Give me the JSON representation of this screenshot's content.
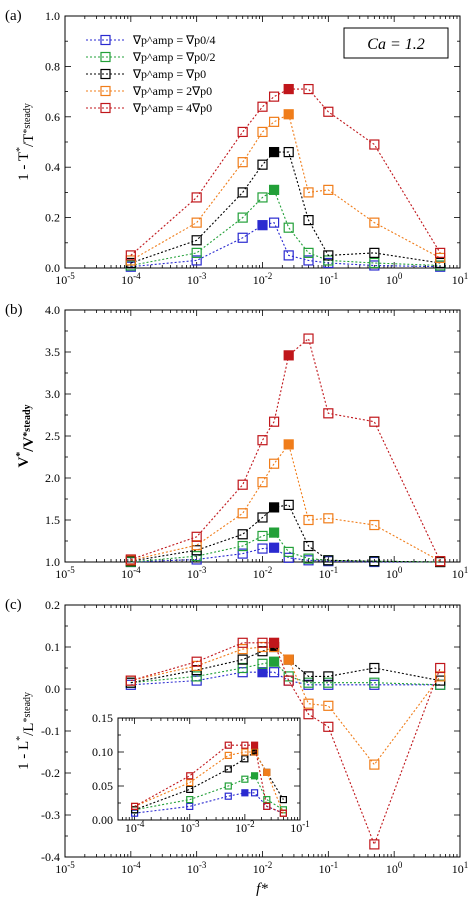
{
  "panels_labels": [
    "(a)",
    "(b)",
    "(c)"
  ],
  "ca_label": "Ca = 1.2",
  "xlabel": "f*",
  "legend": [
    "∇p^amp = ∇p0/4",
    "∇p^amp = ∇p0/2",
    "∇p^amp = ∇p0",
    "∇p^amp = 2∇p0",
    "∇p^amp = 4∇p0"
  ],
  "colors": [
    "#2a2ad0",
    "#22a038",
    "#000000",
    "#f07d1a",
    "#c0161b"
  ],
  "chart_data": [
    {
      "type": "scatter",
      "panel": "(a)",
      "ylabel": "1 - T*/T*steady",
      "xscale": "log",
      "xlim": [
        1e-05,
        10
      ],
      "ylim": [
        0,
        1.0
      ],
      "yticks": [
        "0.0",
        "0.2",
        "0.4",
        "0.6",
        "0.8",
        "1.0"
      ],
      "xticks": [
        "10-5",
        "10-4",
        "10-3",
        "10-2",
        "10-1",
        "100",
        "101"
      ],
      "x": [
        0.0001,
        0.001,
        0.005,
        0.01,
        0.015,
        0.025,
        0.05,
        0.1,
        0.5,
        5
      ],
      "series": [
        {
          "name": "∇p^amp = ∇p0/4",
          "values": [
            0.005,
            0.03,
            0.12,
            0.17,
            0.18,
            0.05,
            0.03,
            0.02,
            0.01,
            0.005
          ],
          "filled_index": 3
        },
        {
          "name": "∇p^amp = ∇p0/2",
          "values": [
            0.01,
            0.06,
            0.2,
            0.28,
            0.31,
            0.16,
            0.06,
            0.03,
            0.02,
            0.01
          ],
          "filled_index": 4
        },
        {
          "name": "∇p^amp = ∇p0",
          "values": [
            0.02,
            0.11,
            0.3,
            0.41,
            0.46,
            0.46,
            0.19,
            0.05,
            0.06,
            0.02
          ],
          "filled_index": 4
        },
        {
          "name": "∇p^amp = 2∇p0",
          "values": [
            0.03,
            0.18,
            0.42,
            0.54,
            0.58,
            0.61,
            0.3,
            0.31,
            0.18,
            0.04
          ],
          "filled_index": 5
        },
        {
          "name": "∇p^amp = 4∇p0",
          "values": [
            0.05,
            0.28,
            0.54,
            0.64,
            0.68,
            0.71,
            0.71,
            0.62,
            0.49,
            0.06
          ],
          "filled_index": 5
        }
      ]
    },
    {
      "type": "scatter",
      "panel": "(b)",
      "ylabel": "V*/V*steady",
      "xscale": "log",
      "xlim": [
        1e-05,
        10
      ],
      "ylim": [
        1.0,
        4.0
      ],
      "yticks": [
        "1.0",
        "1.5",
        "2.0",
        "2.5",
        "3.0",
        "3.5",
        "4.0"
      ],
      "xticks": [
        "10-5",
        "10-4",
        "10-3",
        "10-2",
        "10-1",
        "100",
        "101"
      ],
      "x": [
        0.0001,
        0.001,
        0.005,
        0.01,
        0.015,
        0.025,
        0.05,
        0.1,
        0.5,
        5
      ],
      "series": [
        {
          "name": "∇p^amp = ∇p0/4",
          "values": [
            1.0,
            1.03,
            1.1,
            1.16,
            1.17,
            1.05,
            1.02,
            1.01,
            1.0,
            1.0
          ],
          "filled_index": 4
        },
        {
          "name": "∇p^amp = ∇p0/2",
          "values": [
            1.0,
            1.07,
            1.19,
            1.31,
            1.35,
            1.12,
            1.04,
            1.02,
            1.01,
            1.0
          ],
          "filled_index": 4
        },
        {
          "name": "∇p^amp = ∇p0",
          "values": [
            1.01,
            1.14,
            1.33,
            1.53,
            1.65,
            1.68,
            1.19,
            1.02,
            1.01,
            1.0
          ],
          "filled_index": 4
        },
        {
          "name": "∇p^amp = 2∇p0",
          "values": [
            1.02,
            1.2,
            1.58,
            1.95,
            2.17,
            2.4,
            1.5,
            1.52,
            1.44,
            1.01
          ],
          "filled_index": 5
        },
        {
          "name": "∇p^amp = 4∇p0",
          "values": [
            1.03,
            1.3,
            1.92,
            2.45,
            2.67,
            3.46,
            3.66,
            2.77,
            2.67,
            1.01
          ],
          "filled_index": 5
        }
      ]
    },
    {
      "type": "scatter",
      "panel": "(c)",
      "ylabel": "1 - L*/L*steady",
      "xscale": "log",
      "xlim": [
        1e-05,
        10
      ],
      "ylim": [
        -0.4,
        0.2
      ],
      "yticks": [
        "-0.4",
        "-0.3",
        "-0.2",
        "-0.1",
        "0.0",
        "0.1",
        "0.2"
      ],
      "xticks": [
        "10-5",
        "10-4",
        "10-3",
        "10-2",
        "10-1",
        "100",
        "101"
      ],
      "x": [
        0.0001,
        0.001,
        0.005,
        0.01,
        0.015,
        0.025,
        0.05,
        0.1,
        0.5,
        5
      ],
      "series": [
        {
          "name": "∇p^amp = ∇p0/4",
          "values": [
            0.01,
            0.02,
            0.04,
            0.04,
            0.04,
            0.02,
            0.01,
            0.01,
            0.01,
            0.01
          ],
          "filled_index": 3
        },
        {
          "name": "∇p^amp = ∇p0/2",
          "values": [
            0.015,
            0.03,
            0.05,
            0.06,
            0.065,
            0.03,
            0.015,
            0.015,
            0.015,
            0.01
          ],
          "filled_index": 4
        },
        {
          "name": "∇p^amp = ∇p0",
          "values": [
            0.015,
            0.045,
            0.07,
            0.09,
            0.1,
            0.07,
            0.03,
            0.03,
            0.05,
            0.02
          ],
          "filled_index": 4
        },
        {
          "name": "∇p^amp = 2∇p0",
          "values": [
            0.02,
            0.055,
            0.095,
            0.1,
            0.1,
            0.07,
            -0.035,
            -0.04,
            -0.18,
            0.03
          ],
          "filled_index": 5
        },
        {
          "name": "∇p^amp = 4∇p0",
          "values": [
            0.02,
            0.065,
            0.11,
            0.11,
            0.11,
            0.02,
            -0.06,
            -0.09,
            -0.37,
            0.05
          ],
          "filled_index": 4
        }
      ]
    },
    {
      "type": "scatter",
      "panel": "(c) inset",
      "xscale": "log",
      "xlim": [
        5e-05,
        0.1
      ],
      "ylim": [
        0,
        0.15
      ],
      "yticks": [
        "0.00",
        "0.05",
        "0.10",
        "0.15"
      ],
      "xticks": [
        "10-4",
        "10-3",
        "10-2",
        "10-1"
      ],
      "x": [
        0.0001,
        0.001,
        0.005,
        0.01,
        0.015,
        0.025,
        0.05
      ],
      "series": [
        {
          "name": "∇p^amp = ∇p0/4",
          "values": [
            0.01,
            0.02,
            0.035,
            0.04,
            0.04,
            0.02,
            0.01
          ],
          "filled_index": 3
        },
        {
          "name": "∇p^amp = ∇p0/2",
          "values": [
            0.015,
            0.03,
            0.05,
            0.06,
            0.065,
            0.03,
            0.015
          ],
          "filled_index": 4
        },
        {
          "name": "∇p^amp = ∇p0",
          "values": [
            0.015,
            0.045,
            0.075,
            0.09,
            0.1,
            0.07,
            0.03
          ],
          "filled_index": 4
        },
        {
          "name": "∇p^amp = 2∇p0",
          "values": [
            0.02,
            0.055,
            0.095,
            0.1,
            0.1,
            0.07,
            0.01
          ],
          "filled_index": 5
        },
        {
          "name": "∇p^amp = 4∇p0",
          "values": [
            0.02,
            0.065,
            0.11,
            0.11,
            0.11,
            0.02,
            0.01
          ],
          "filled_index": 4
        }
      ]
    }
  ]
}
